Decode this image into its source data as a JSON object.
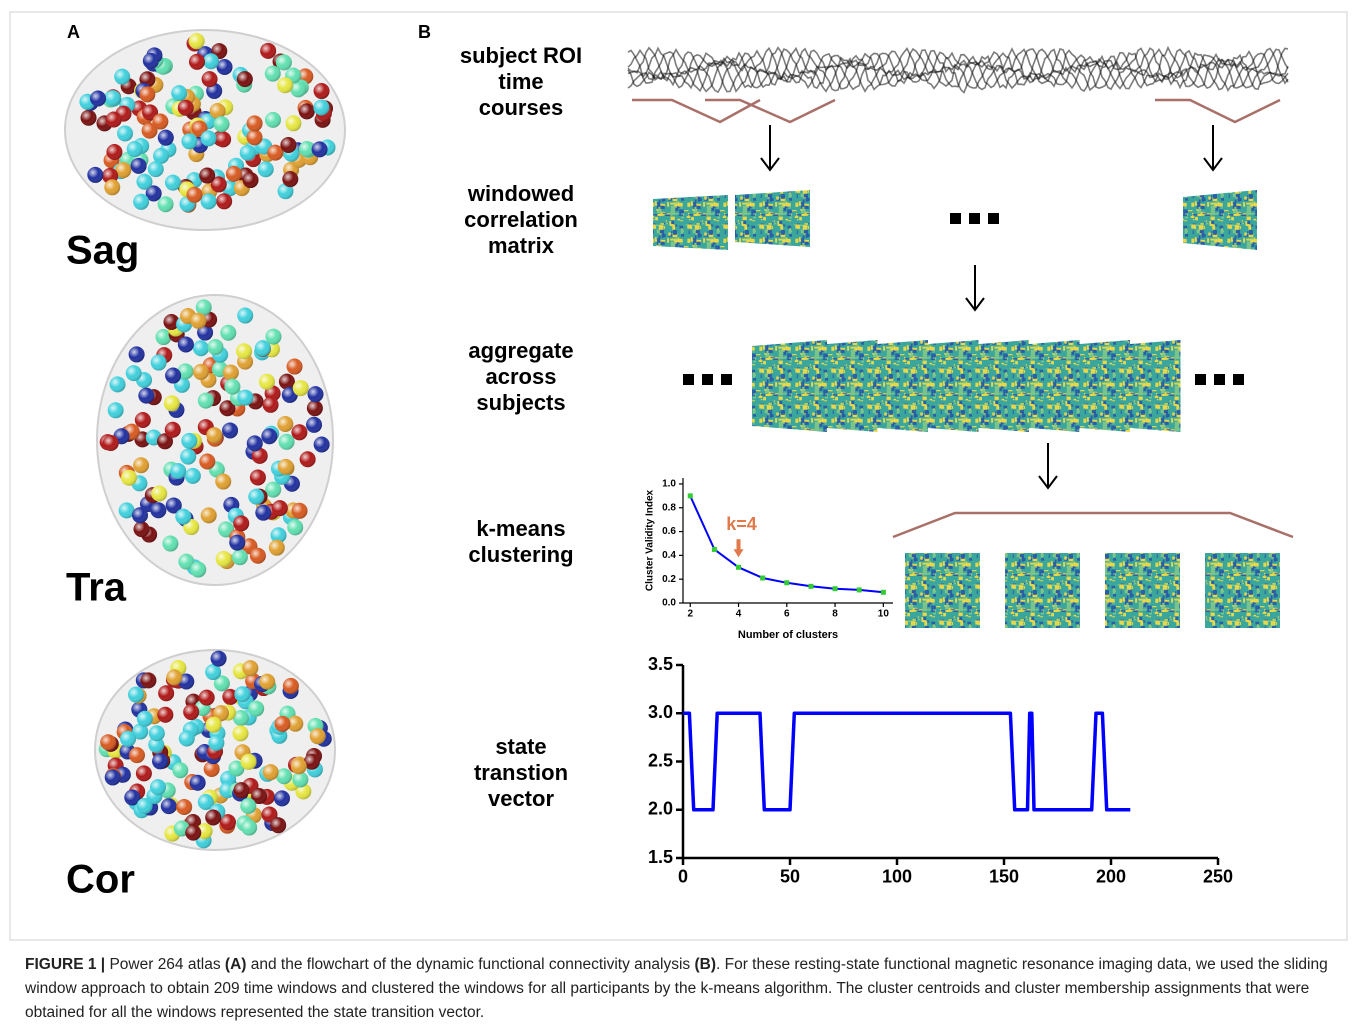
{
  "panels": {
    "a": "A",
    "b": "B"
  },
  "views": [
    "Sag",
    "Tra",
    "Cor"
  ],
  "steps": [
    [
      "subject ROI",
      "time",
      "courses"
    ],
    [
      "windowed",
      "correlation",
      "matrix"
    ],
    [
      "aggregate",
      "across",
      "subjects"
    ],
    [
      "k-means",
      "clustering"
    ],
    [
      "state",
      "transtion",
      "vector"
    ]
  ],
  "chart_data": [
    {
      "type": "line",
      "x_label": "Number of clusters",
      "y_label": "Cluster Validity Index",
      "annotation": "k=4",
      "x": [
        2,
        3,
        4,
        5,
        6,
        7,
        8,
        9,
        10
      ],
      "values": [
        0.9,
        0.45,
        0.3,
        0.21,
        0.17,
        0.14,
        0.12,
        0.11,
        0.09
      ],
      "color": "#0000ff",
      "marker_color": "#33cc33",
      "annotation_color": "#e07a4a",
      "xlim": [
        1.7,
        10.4
      ],
      "ylim": [
        0,
        1.05
      ],
      "xticks": [
        2,
        4,
        6,
        8,
        10
      ],
      "yticks": [
        {
          "value": 0,
          "label": "0.0"
        },
        0.2,
        0.4,
        0.6,
        0.8,
        {
          "value": 1,
          "label": "1.0"
        }
      ]
    },
    {
      "type": "line",
      "x": [
        0,
        3,
        5,
        14,
        16,
        36,
        38,
        50,
        52,
        153,
        155,
        161,
        162,
        163,
        164,
        191,
        193,
        196,
        198,
        209
      ],
      "values": [
        3,
        3,
        2,
        2,
        3,
        3,
        2,
        2,
        3,
        3,
        2,
        2,
        3,
        3,
        2,
        2,
        3,
        3,
        2,
        2
      ],
      "color": "#0000ff",
      "xlim": [
        0,
        250
      ],
      "ylim": [
        1.5,
        3.5
      ],
      "xticks": [
        0,
        50,
        100,
        150,
        200,
        250
      ],
      "yticks": [
        1.5,
        {
          "value": 2,
          "label": "2.0"
        },
        2.5,
        {
          "value": 3,
          "label": "3.0"
        },
        3.5
      ]
    }
  ],
  "caption": {
    "label": "FIGURE 1 |",
    "segments": [
      {
        "text": " Power 264 atlas "
      },
      {
        "text": "(A)",
        "bold": true
      },
      {
        "text": " and the flowchart of the dynamic functional connectivity analysis "
      },
      {
        "text": "(B)",
        "bold": true
      },
      {
        "text": ". For these resting-state functional magnetic resonance imaging data, we used the sliding window approach to obtain 209 time windows and clustered the windows for all participants by the k-means algorithm. The cluster centroids and cluster membership assignments that were obtained for all the windows represented the state transition vector."
      }
    ]
  }
}
